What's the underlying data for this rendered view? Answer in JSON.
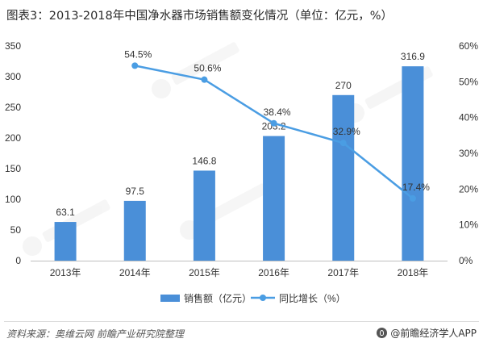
{
  "title": "图表3：2013-2018年中国净水器市场销售额变化情况（单位：亿元，%）",
  "chart_data": {
    "type": "bar",
    "categories": [
      "2013年",
      "2014年",
      "2015年",
      "2016年",
      "2017年",
      "2018年"
    ],
    "series": [
      {
        "name": "销售额（亿元）",
        "type": "bar",
        "axis": "left",
        "values": [
          63.1,
          97.5,
          146.8,
          203.2,
          270,
          316.9
        ],
        "labels": [
          "63.1",
          "97.5",
          "146.8",
          "203.2",
          "270",
          "316.9"
        ]
      },
      {
        "name": "同比增长（%）",
        "type": "line",
        "axis": "right",
        "values": [
          null,
          54.5,
          50.6,
          38.4,
          32.9,
          17.4
        ],
        "labels": [
          "",
          "54.5%",
          "50.6%",
          "38.4%",
          "32.9%",
          "17.4%"
        ]
      }
    ],
    "y_left": {
      "min": 0,
      "max": 350,
      "ticks": [
        0,
        50,
        100,
        150,
        200,
        250,
        300,
        350
      ]
    },
    "y_right": {
      "min": 0,
      "max": 60,
      "ticks": [
        "0%",
        "10%",
        "20%",
        "30%",
        "40%",
        "50%",
        "60%"
      ]
    },
    "legend_position": "bottom",
    "grid": false,
    "colors": {
      "bar": "#4a8fd8",
      "line": "#4a9de3"
    }
  },
  "footer": {
    "source": "资料来源：奥维云网 前瞻产业研究院整理",
    "brand": "@前瞻经济学人APP"
  }
}
